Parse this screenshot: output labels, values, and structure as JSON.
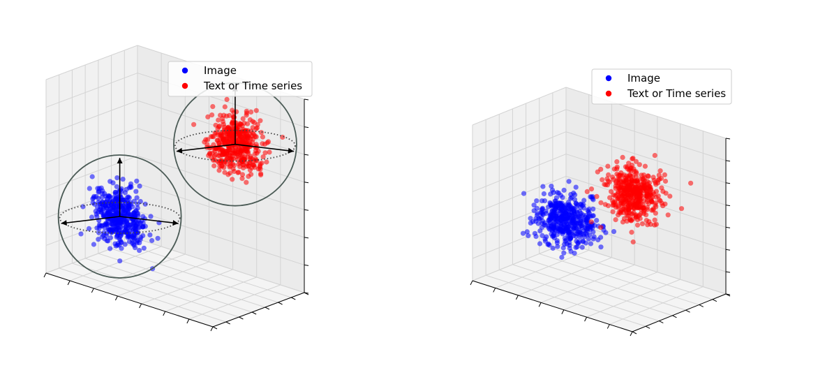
{
  "chart_data": [
    {
      "type": "scatter",
      "projection": "3d",
      "title": "",
      "xlabel": "",
      "ylabel": "",
      "zlabel": "",
      "tick_labels_shown": false,
      "grid": true,
      "legend_position": "upper-right",
      "legend": [
        "Image",
        "Text or Time series"
      ],
      "series": [
        {
          "name": "Image",
          "color": "#0000ff",
          "center": [
            0.25,
            0.35,
            0.3
          ],
          "spread": 0.07,
          "count": 450
        },
        {
          "name": "Text or Time series",
          "color": "#ff0000",
          "center": [
            0.75,
            0.7,
            0.75
          ],
          "spread": 0.07,
          "count": 450
        }
      ],
      "annotations": [
        "bounding sphere with three axis arrows around each cluster",
        "dotted equatorial ellipse on each sphere"
      ],
      "annotation_color": "#4a5a55"
    },
    {
      "type": "scatter",
      "projection": "3d",
      "title": "",
      "xlabel": "",
      "ylabel": "",
      "zlabel": "",
      "tick_labels_shown": false,
      "grid": true,
      "legend_position": "upper-right",
      "legend": [
        "Image",
        "Text or Time series"
      ],
      "series": [
        {
          "name": "Image",
          "color": "#0000ff",
          "center": [
            0.35,
            0.4,
            0.4
          ],
          "spread": 0.08,
          "count": 450
        },
        {
          "name": "Text or Time series",
          "color": "#ff0000",
          "center": [
            0.65,
            0.6,
            0.62
          ],
          "spread": 0.08,
          "count": 450
        }
      ]
    }
  ]
}
